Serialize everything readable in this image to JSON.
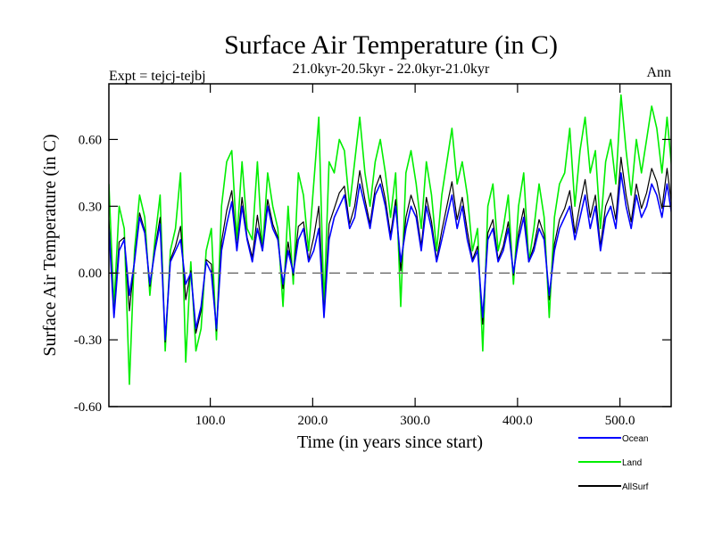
{
  "chart_data": {
    "type": "line",
    "title": "Surface Air Temperature (in C)",
    "subtitle": "21.0kyr-20.5kyr - 22.0kyr-21.0kyr",
    "left_note": "Expt = tejcj-tejbj",
    "right_note": "Ann",
    "xlabel": "Time (in years since start)",
    "ylabel": "Surface Air Temperature (in C)",
    "xlim": [
      1,
      550
    ],
    "ylim": [
      -0.6,
      0.85
    ],
    "xticks": [
      100,
      200,
      300,
      400,
      500
    ],
    "xtick_labels": [
      "100.0",
      "200.0",
      "300.0",
      "400.0",
      "500.0"
    ],
    "yticks": [
      -0.6,
      -0.3,
      0.0,
      0.3,
      0.6
    ],
    "ytick_labels": [
      "-0.60",
      "-0.30",
      "0.00",
      "0.30",
      "0.60"
    ],
    "reference_line": 0.0,
    "series_sampling_years": 5,
    "series": [
      {
        "name": "Ocean",
        "color": "#0000ff",
        "values": [
          0.2,
          -0.2,
          0.1,
          0.15,
          -0.1,
          0.05,
          0.25,
          0.18,
          -0.05,
          0.1,
          0.22,
          -0.3,
          0.05,
          0.1,
          0.15,
          -0.05,
          0.0,
          -0.25,
          -0.15,
          0.05,
          0.0,
          -0.25,
          0.1,
          0.22,
          0.32,
          0.1,
          0.3,
          0.15,
          0.05,
          0.2,
          0.1,
          0.3,
          0.2,
          0.15,
          -0.05,
          0.1,
          0.0,
          0.15,
          0.2,
          0.05,
          0.1,
          0.2,
          -0.2,
          0.15,
          0.25,
          0.3,
          0.35,
          0.2,
          0.25,
          0.4,
          0.3,
          0.2,
          0.35,
          0.4,
          0.3,
          0.15,
          0.3,
          0.05,
          0.2,
          0.3,
          0.25,
          0.1,
          0.3,
          0.2,
          0.05,
          0.15,
          0.25,
          0.35,
          0.2,
          0.3,
          0.15,
          0.05,
          0.1,
          -0.2,
          0.15,
          0.2,
          0.05,
          0.1,
          0.2,
          0.0,
          0.15,
          0.25,
          0.05,
          0.1,
          0.2,
          0.15,
          -0.1,
          0.1,
          0.2,
          0.25,
          0.3,
          0.15,
          0.25,
          0.35,
          0.2,
          0.3,
          0.1,
          0.25,
          0.3,
          0.2,
          0.45,
          0.3,
          0.2,
          0.35,
          0.25,
          0.3,
          0.4,
          0.35,
          0.25,
          0.4,
          0.25,
          0.35
        ]
      },
      {
        "name": "Land",
        "color": "#00ee00",
        "values": [
          0.4,
          -0.15,
          0.3,
          0.2,
          -0.5,
          0.1,
          0.35,
          0.25,
          -0.1,
          0.15,
          0.35,
          -0.35,
          0.1,
          0.2,
          0.45,
          -0.4,
          0.05,
          -0.35,
          -0.25,
          0.1,
          0.2,
          -0.3,
          0.3,
          0.5,
          0.55,
          0.15,
          0.5,
          0.2,
          0.15,
          0.5,
          0.1,
          0.45,
          0.3,
          0.2,
          -0.15,
          0.3,
          -0.05,
          0.45,
          0.35,
          0.1,
          0.4,
          0.7,
          -0.15,
          0.5,
          0.45,
          0.6,
          0.55,
          0.3,
          0.5,
          0.7,
          0.45,
          0.3,
          0.5,
          0.6,
          0.45,
          0.25,
          0.45,
          -0.15,
          0.45,
          0.55,
          0.4,
          0.2,
          0.5,
          0.35,
          0.1,
          0.35,
          0.5,
          0.65,
          0.4,
          0.5,
          0.35,
          0.1,
          0.2,
          -0.35,
          0.3,
          0.4,
          0.1,
          0.2,
          0.35,
          -0.05,
          0.3,
          0.45,
          0.05,
          0.2,
          0.4,
          0.25,
          -0.2,
          0.25,
          0.4,
          0.45,
          0.65,
          0.3,
          0.55,
          0.7,
          0.45,
          0.55,
          0.2,
          0.5,
          0.6,
          0.4,
          0.8,
          0.55,
          0.35,
          0.6,
          0.45,
          0.6,
          0.75,
          0.65,
          0.45,
          0.7,
          0.45,
          0.55
        ]
      },
      {
        "name": "AllSurf",
        "color": "#000000",
        "values": [
          0.24,
          -0.19,
          0.14,
          0.16,
          -0.17,
          0.06,
          0.27,
          0.19,
          -0.06,
          0.11,
          0.25,
          -0.31,
          0.06,
          0.12,
          0.21,
          -0.12,
          0.01,
          -0.27,
          -0.17,
          0.06,
          0.04,
          -0.26,
          0.14,
          0.28,
          0.37,
          0.11,
          0.34,
          0.16,
          0.07,
          0.26,
          0.1,
          0.33,
          0.22,
          0.16,
          -0.07,
          0.14,
          -0.01,
          0.21,
          0.23,
          0.06,
          0.16,
          0.3,
          -0.19,
          0.22,
          0.29,
          0.36,
          0.39,
          0.22,
          0.3,
          0.46,
          0.33,
          0.22,
          0.38,
          0.44,
          0.33,
          0.17,
          0.33,
          0.01,
          0.25,
          0.35,
          0.28,
          0.12,
          0.34,
          0.23,
          0.06,
          0.19,
          0.3,
          0.41,
          0.24,
          0.34,
          0.19,
          0.06,
          0.12,
          -0.23,
          0.18,
          0.24,
          0.06,
          0.12,
          0.23,
          -0.01,
          0.18,
          0.29,
          0.05,
          0.12,
          0.24,
          0.17,
          -0.12,
          0.13,
          0.24,
          0.29,
          0.37,
          0.18,
          0.31,
          0.42,
          0.25,
          0.35,
          0.12,
          0.3,
          0.36,
          0.24,
          0.52,
          0.35,
          0.23,
          0.4,
          0.29,
          0.36,
          0.47,
          0.41,
          0.29,
          0.47,
          0.29,
          0.4
        ]
      }
    ]
  }
}
